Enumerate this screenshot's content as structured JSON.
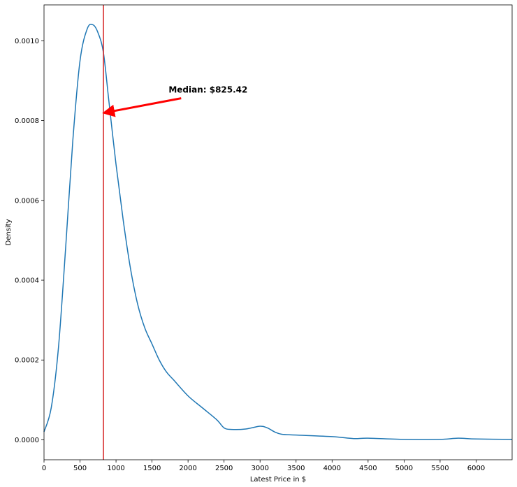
{
  "chart_data": {
    "type": "line",
    "title": "",
    "xlabel": "Latest Price in $",
    "ylabel": "Density",
    "xlim": [
      0,
      6500
    ],
    "ylim": [
      -5e-05,
      0.00109
    ],
    "grid": false,
    "x_ticks": [
      0,
      500,
      1000,
      1500,
      2000,
      2500,
      3000,
      3500,
      4000,
      4500,
      5000,
      5500,
      6000
    ],
    "x_tick_labels": [
      "0",
      "500",
      "1000",
      "1500",
      "2000",
      "2500",
      "3000",
      "3500",
      "4000",
      "4500",
      "5000",
      "5500",
      "6000"
    ],
    "y_ticks": [
      0.0,
      0.0002,
      0.0004,
      0.0006,
      0.0008,
      0.001
    ],
    "y_tick_labels": [
      "0.0000",
      "0.0002",
      "0.0004",
      "0.0006",
      "0.0008",
      "0.0010"
    ],
    "series": [
      {
        "color": "#1f77b4",
        "x": [
          0,
          100,
          200,
          300,
          400,
          500,
          600,
          680,
          750,
          825,
          900,
          1000,
          1100,
          1200,
          1300,
          1400,
          1500,
          1600,
          1700,
          1800,
          2000,
          2200,
          2400,
          2500,
          2600,
          2800,
          3000,
          3100,
          3200,
          3300,
          3500,
          4000,
          4300,
          4500,
          5000,
          5500,
          5750,
          6000,
          6500
        ],
        "y": [
          2e-05,
          8e-05,
          0.00023,
          0.00048,
          0.00075,
          0.00095,
          0.00103,
          0.00104,
          0.00102,
          0.00097,
          0.00085,
          0.00069,
          0.00055,
          0.00043,
          0.00034,
          0.00028,
          0.00024,
          0.0002,
          0.00017,
          0.00015,
          0.00011,
          8e-05,
          5e-05,
          3e-05,
          2.6e-05,
          2.7e-05,
          3.4e-05,
          3e-05,
          2e-05,
          1.4e-05,
          1.2e-05,
          8e-06,
          3e-06,
          4e-06,
          1e-06,
          1e-06,
          4e-06,
          2e-06,
          1e-06
        ]
      }
    ],
    "median_line": {
      "x": 825.42,
      "color": "#d62728"
    },
    "annotation": {
      "text": "Median: $825.42",
      "text_x": 1730,
      "text_y": 0.00087,
      "arrow_end_x": 850,
      "arrow_end_y": 0.00082,
      "color": "#ff0000"
    }
  }
}
